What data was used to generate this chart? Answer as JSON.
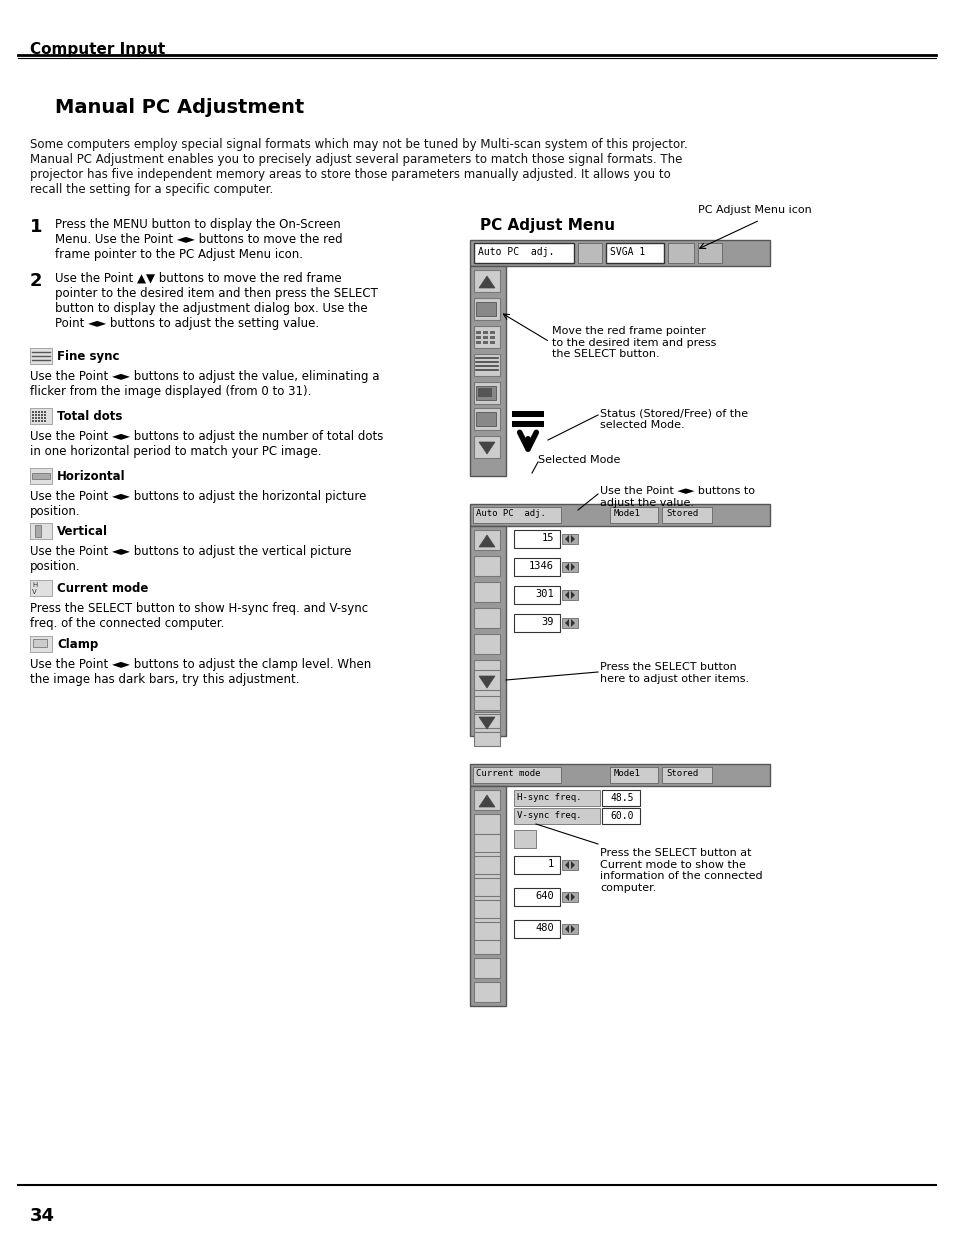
{
  "page_title": "Computer Input",
  "section_title": "Manual PC Adjustment",
  "page_number": "34",
  "body_text": "Some computers employ special signal formats which may not be tuned by Multi-scan system of this projector.\nManual PC Adjustment enables you to precisely adjust several parameters to match those signal formats. The\nprojector has five independent memory areas to store those parameters manually adjusted. It allows you to\nrecall the setting for a specific computer.",
  "step1_num": "1",
  "step1_text": "Press the MENU button to display the On-Screen\nMenu. Use the Point ◄► buttons to move the red\nframe pointer to the PC Adjust Menu icon.",
  "step2_num": "2",
  "step2_text": "Use the Point ▲▼ buttons to move the red frame\npointer to the desired item and then press the SELECT\nbutton to display the adjustment dialog box. Use the\nPoint ◄► buttons to adjust the setting value.",
  "fine_sync_title": "Fine sync",
  "fine_sync_text": "Use the Point ◄► buttons to adjust the value, eliminating a\nflicker from the image displayed (from 0 to 31).",
  "total_dots_title": "Total dots",
  "total_dots_text": "Use the Point ◄► buttons to adjust the number of total dots\nin one horizontal period to match your PC image.",
  "horizontal_title": "Horizontal",
  "horizontal_text": "Use the Point ◄► buttons to adjust the horizontal picture\nposition.",
  "vertical_title": "Vertical",
  "vertical_text": "Use the Point ◄► buttons to adjust the vertical picture\nposition.",
  "current_mode_title": "Current mode",
  "current_mode_text": "Press the SELECT button to show H-sync freq. and V-sync\nfreq. of the connected computer.",
  "clamp_title": "Clamp",
  "clamp_text": "Use the Point ◄► buttons to adjust the clamp level. When\nthe image has dark bars, try this adjustment.",
  "pc_adjust_menu_title": "PC Adjust Menu",
  "annotation1": "PC Adjust Menu icon",
  "annotation2": "Move the red frame pointer\nto the desired item and press\nthe SELECT button.",
  "annotation3": "Status (Stored/Free) of the\nselected Mode.",
  "annotation4": "Selected Mode",
  "annotation5": "Use the Point ◄► buttons to\nadjust the value.",
  "annotation6": "Press the SELECT button\nhere to adjust other items.",
  "annotation7": "Press the SELECT button at\nCurrent mode to show the\ninformation of the connected\ncomputer.",
  "values1": [
    "15",
    "1346",
    "301",
    "39"
  ],
  "values2": [
    "1",
    "640",
    "480"
  ],
  "hsync": "48.5",
  "vsync": "60.0",
  "bg_color": "#ffffff"
}
